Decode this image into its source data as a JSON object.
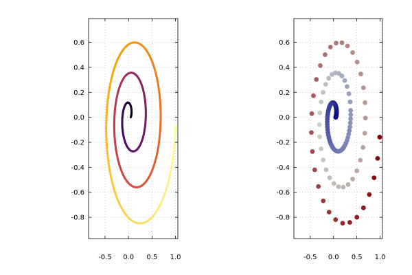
{
  "chart_data": [
    {
      "type": "line",
      "title": "",
      "xlabel": "",
      "ylabel": "",
      "xlim": [
        -0.85,
        1.05
      ],
      "ylim": [
        -0.97,
        0.79
      ],
      "xticks": [
        -0.5,
        0.0,
        0.5,
        1.0
      ],
      "xtick_labels": [
        "-0.5",
        "0.0",
        "0.5",
        "1.0"
      ],
      "yticks": [
        0.6,
        0.4,
        0.2,
        0.0,
        -0.2,
        -0.4,
        -0.6,
        -0.8
      ],
      "ytick_labels": [
        "0.6",
        "0.4",
        "0.2",
        "0.0",
        "-0.2",
        "-0.4",
        "-0.6",
        "-0.8"
      ],
      "grid": true,
      "legend": "none",
      "series": [
        {
          "kind": "spiral-line",
          "description_colormap": "inferno",
          "colormap_stops": [
            "#000004",
            "#420a68",
            "#932667",
            "#dd513a",
            "#fca50a",
            "#fcffa4"
          ],
          "x_start": 0.0,
          "y_start": 0.09,
          "x_end": 1.0,
          "y_end": 0.0,
          "turns": 3,
          "points": [
            [
              0.0,
              0.09
            ],
            [
              0.02,
              0.1
            ],
            [
              -0.05,
              0.05
            ],
            [
              -0.06,
              -0.05
            ],
            [
              0.05,
              -0.05
            ],
            [
              0.1,
              0.09
            ],
            [
              -0.02,
              0.18
            ],
            [
              -0.2,
              0.05
            ],
            [
              -0.2,
              -0.25
            ],
            [
              -0.05,
              -0.32
            ],
            [
              0.15,
              -0.2
            ],
            [
              0.27,
              0.1
            ],
            [
              0.15,
              0.38
            ],
            [
              0.0,
              0.42
            ],
            [
              -0.22,
              0.3
            ],
            [
              -0.35,
              -0.05
            ],
            [
              -0.3,
              -0.42
            ],
            [
              0.0,
              -0.58
            ],
            [
              0.3,
              -0.5
            ],
            [
              0.48,
              -0.1
            ],
            [
              0.45,
              0.3
            ],
            [
              0.2,
              0.62
            ],
            [
              0.0,
              0.75
            ],
            [
              -0.4,
              0.6
            ],
            [
              -0.65,
              0.1
            ],
            [
              -0.7,
              -0.3
            ],
            [
              -0.5,
              -0.75
            ],
            [
              0.0,
              -0.92
            ],
            [
              0.4,
              -0.85
            ],
            [
              0.8,
              -0.5
            ],
            [
              1.0,
              0.0
            ]
          ]
        }
      ]
    },
    {
      "type": "scatter",
      "title": "",
      "xlabel": "",
      "ylabel": "",
      "xlim": [
        -0.85,
        1.05
      ],
      "ylim": [
        -0.97,
        0.79
      ],
      "xticks": [
        -0.5,
        0.0,
        0.5,
        1.0
      ],
      "xtick_labels": [
        "-0.5",
        "0.0",
        "0.5",
        "1.0"
      ],
      "yticks": [
        0.6,
        0.4,
        0.2,
        0.0,
        -0.2,
        -0.4,
        -0.6,
        -0.8
      ],
      "ytick_labels": [
        "0.6",
        "0.4",
        "0.2",
        "0.0",
        "-0.2",
        "-0.4",
        "-0.6",
        "-0.8"
      ],
      "grid": true,
      "legend": "none",
      "series": [
        {
          "kind": "spiral-points",
          "description_colormap": "diverging navy-gray-darkred",
          "colormap_stops": [
            "#00007f",
            "#6c74b0",
            "#c8d0c8",
            "#b08080",
            "#7f0000"
          ],
          "point_count": 180
        }
      ]
    }
  ]
}
